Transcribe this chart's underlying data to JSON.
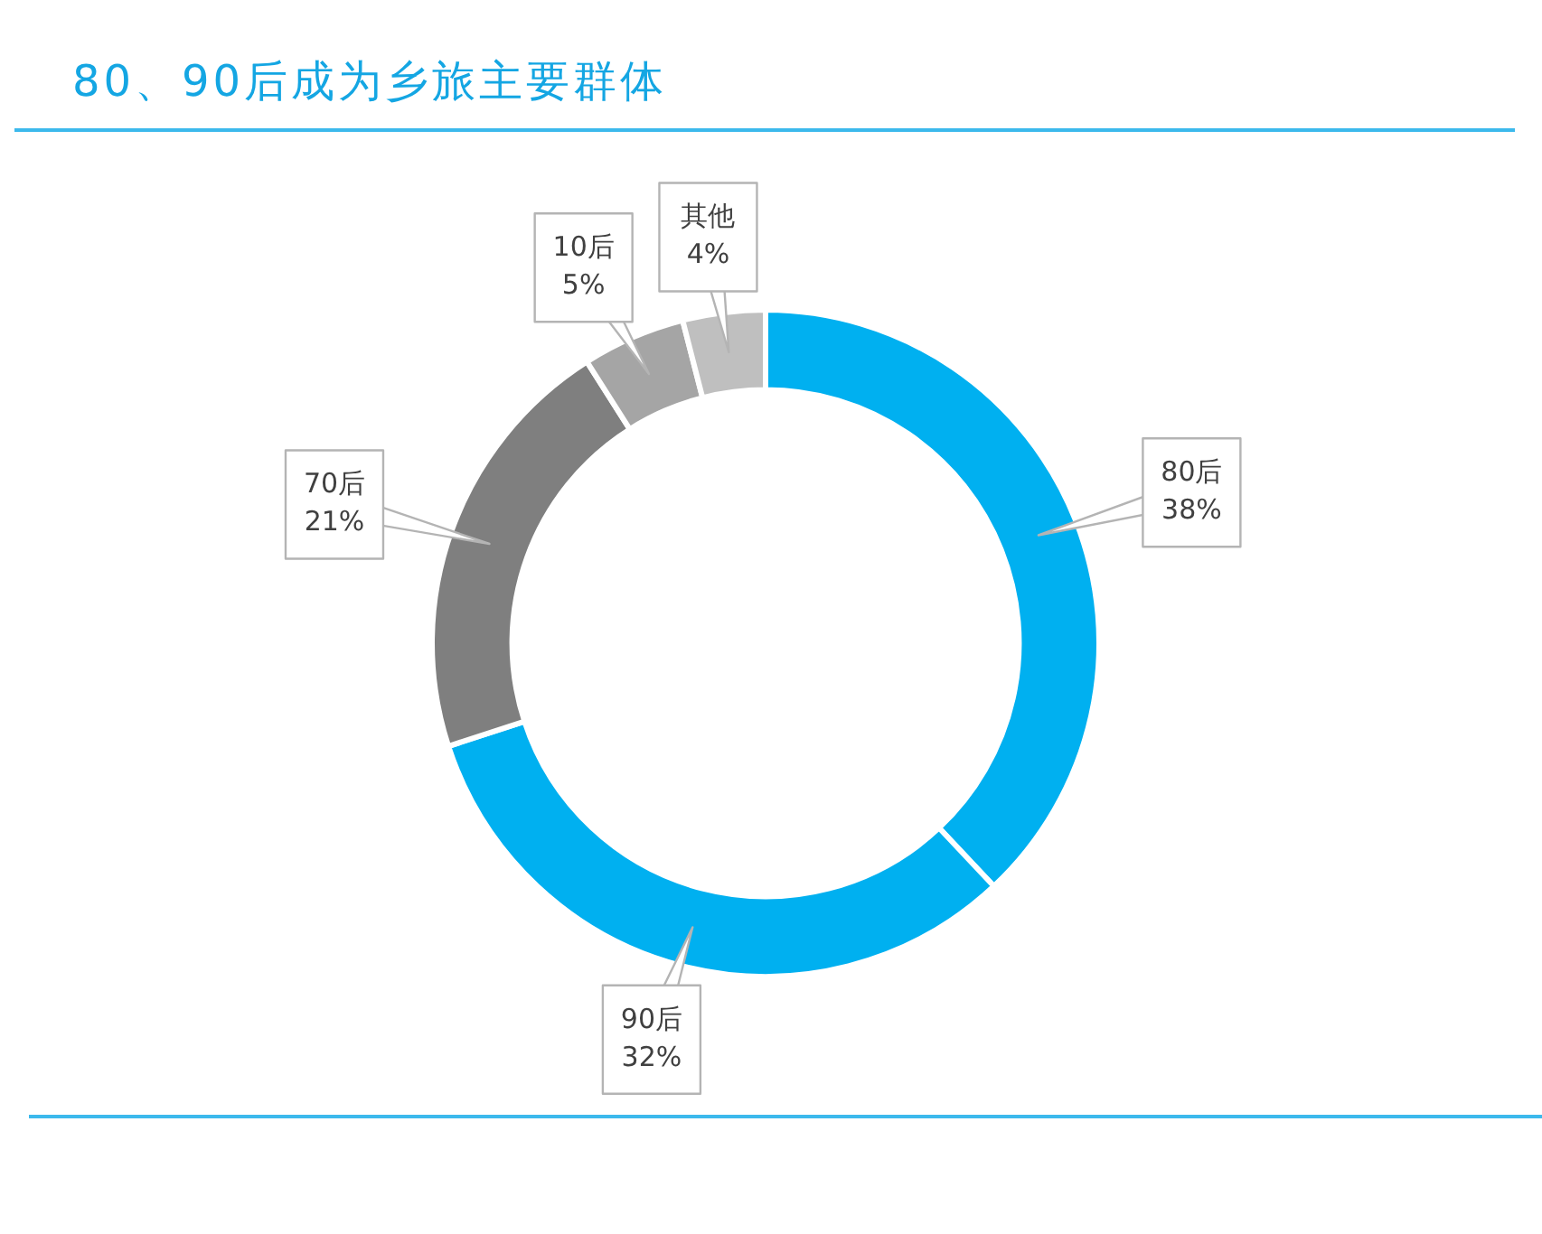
{
  "chart_data": {
    "type": "donut",
    "title": "80、90后成为乡旅主要群体",
    "categories": [
      "80后",
      "90后",
      "70后",
      "10后",
      "其他"
    ],
    "values": [
      38,
      32,
      21,
      5,
      4
    ],
    "value_labels": [
      "38%",
      "32%",
      "21%",
      "5%",
      "4%"
    ],
    "colors": [
      "#00b0f0",
      "#00b0f0",
      "#7f7f7f",
      "#a5a5a5",
      "#bfbfbf"
    ]
  }
}
